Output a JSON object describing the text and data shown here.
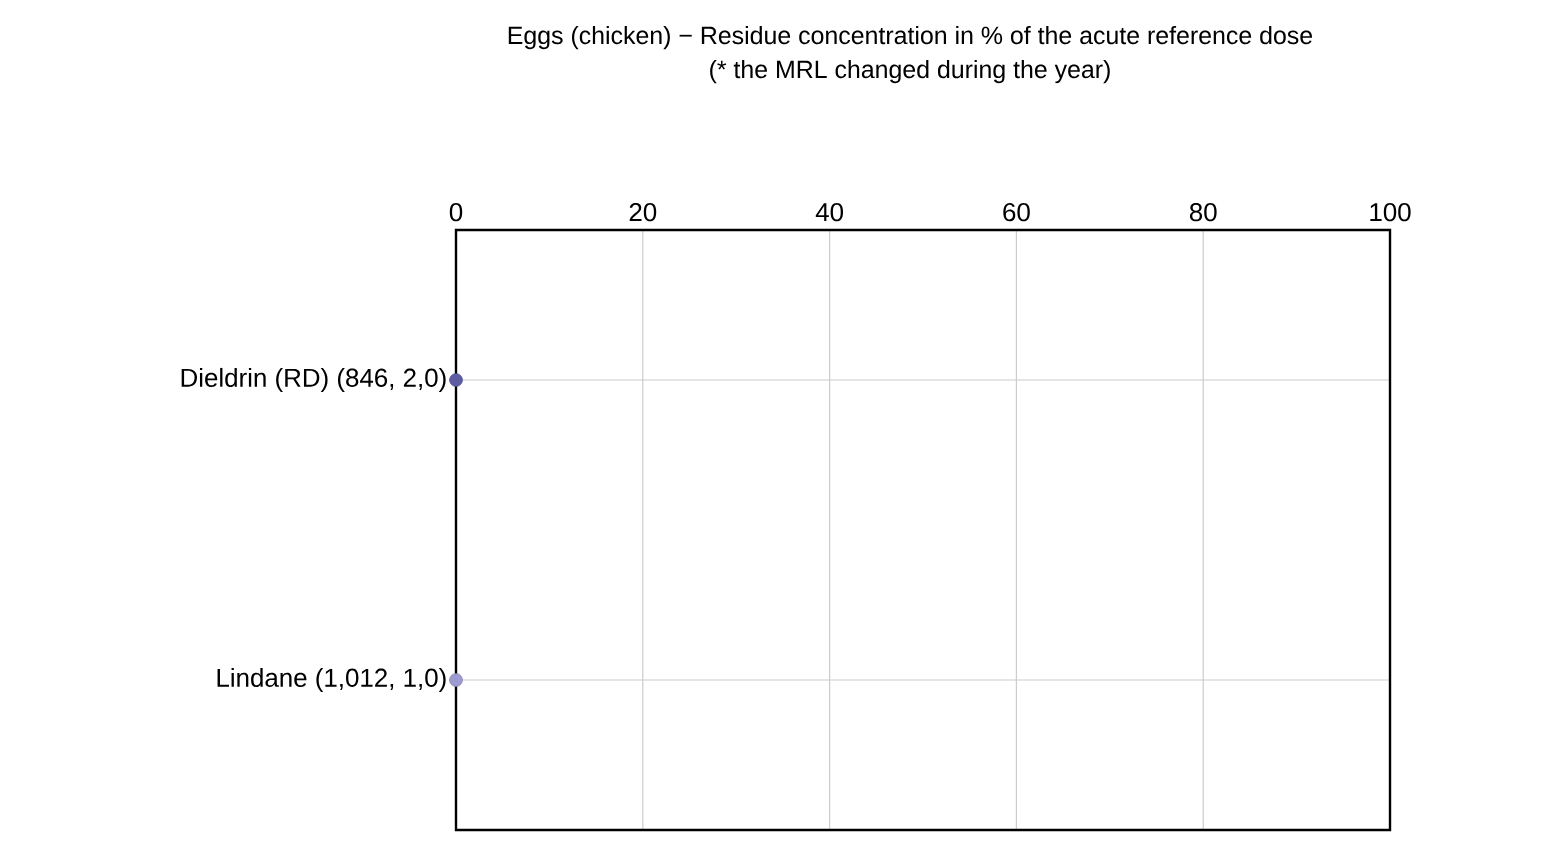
{
  "chart_data": {
    "type": "scatter",
    "title": "Eggs (chicken) − Residue concentration in % of the acute reference dose",
    "subtitle": "(* the MRL changed during the year)",
    "orientation": "horizontal",
    "categories": [
      "Dieldrin (RD) (846, 2,0)",
      "Lindane (1,012, 1,0)"
    ],
    "values": [
      0,
      0
    ],
    "colors": [
      "#5c5ca3",
      "#9c9cd2"
    ],
    "xlim": [
      0,
      100
    ],
    "xticks": [
      0,
      20,
      40,
      60,
      80,
      100
    ],
    "grid": true,
    "marker": "circle"
  }
}
